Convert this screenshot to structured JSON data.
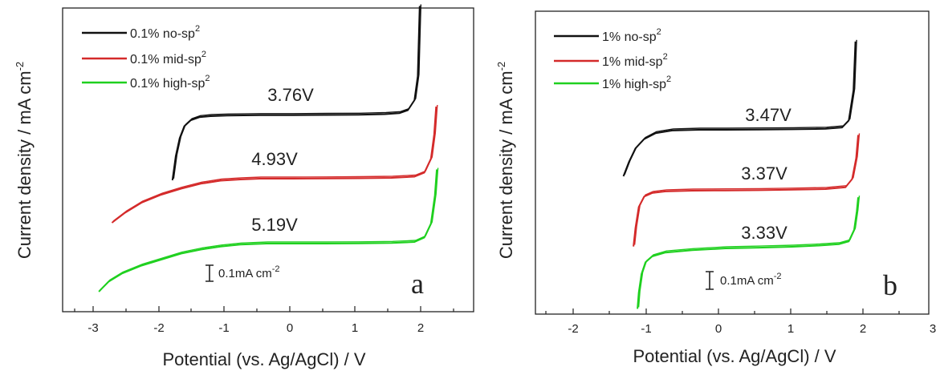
{
  "colors": {
    "black": "#111111",
    "red": "#d42a2a",
    "green": "#1fd01f"
  },
  "chart_data": [
    {
      "type": "line",
      "panel_label": "a",
      "xlabel": "Potential (vs. Ag/AgCl) / V",
      "ylabel": "Current density / mA cm",
      "ylabel_superscript": "-2",
      "xlim": [
        -3.5,
        2.75
      ],
      "xticks": [
        -3,
        -2,
        -1,
        0,
        1,
        2
      ],
      "xtick_labels": [
        "-3",
        "-2",
        "-1",
        "0",
        "1",
        "2"
      ],
      "legend": {
        "placement": "top-left"
      },
      "scale_bar": {
        "label": "0.1mA cm",
        "superscript": "-2"
      },
      "series": [
        {
          "name": "0.1% no-sp",
          "sup": "2",
          "color": "black",
          "window": "3.76V",
          "x": [
            -1.83,
            -1.78,
            -1.72,
            -1.65,
            -1.55,
            -1.42,
            -1.25,
            -1.0,
            -0.5,
            0.0,
            0.5,
            1.0,
            1.4,
            1.62,
            1.75,
            1.85,
            1.9,
            1.93
          ],
          "y": [
            -0.32,
            -0.2,
            -0.11,
            -0.05,
            -0.02,
            -0.005,
            0.0,
            0.003,
            0.005,
            0.005,
            0.006,
            0.007,
            0.01,
            0.015,
            0.03,
            0.08,
            0.2,
            0.55
          ]
        },
        {
          "name": "0.1% mid-sp",
          "sup": "2",
          "color": "red",
          "window": "4.93V",
          "x": [
            -2.75,
            -2.55,
            -2.3,
            -2.0,
            -1.7,
            -1.4,
            -1.1,
            -0.8,
            -0.5,
            0.0,
            0.5,
            1.0,
            1.5,
            1.85,
            2.0,
            2.1,
            2.15,
            2.18
          ],
          "y": [
            -0.22,
            -0.17,
            -0.12,
            -0.08,
            -0.05,
            -0.025,
            -0.01,
            -0.004,
            0.0,
            0.0,
            0.001,
            0.002,
            0.004,
            0.01,
            0.03,
            0.1,
            0.22,
            0.36
          ]
        },
        {
          "name": "0.1% high-sp",
          "sup": "2",
          "color": "green",
          "window": "5.19V",
          "x": [
            -2.95,
            -2.8,
            -2.6,
            -2.3,
            -2.0,
            -1.7,
            -1.4,
            -1.1,
            -0.8,
            -0.4,
            0.0,
            0.5,
            1.0,
            1.5,
            1.85,
            2.0,
            2.1,
            2.16,
            2.19
          ],
          "y": [
            -0.24,
            -0.19,
            -0.15,
            -0.11,
            -0.08,
            -0.05,
            -0.03,
            -0.015,
            -0.005,
            0.0,
            0.0,
            0.0,
            0.001,
            0.003,
            0.008,
            0.03,
            0.1,
            0.24,
            0.37
          ]
        }
      ]
    },
    {
      "type": "line",
      "panel_label": "b",
      "xlabel": "Potential (vs. Ag/AgCl) / V",
      "ylabel": "Current density / mA cm",
      "ylabel_superscript": "-2",
      "xlim": [
        -2.85,
        3.05
      ],
      "xticks": [
        -2,
        -1,
        0,
        1,
        2,
        3
      ],
      "xtick_labels": [
        "-2",
        "-1",
        "0",
        "1",
        "2",
        "3"
      ],
      "legend": {
        "placement": "top-left"
      },
      "scale_bar": {
        "label": "0.1mA cm",
        "superscript": "-2"
      },
      "series": [
        {
          "name": "1% no-sp",
          "sup": "2",
          "color": "black",
          "window": "3.47V",
          "x": [
            -1.53,
            -1.45,
            -1.35,
            -1.22,
            -1.05,
            -0.8,
            -0.4,
            0.0,
            0.5,
            1.0,
            1.5,
            1.75,
            1.85,
            1.92,
            1.95
          ],
          "y": [
            -0.2,
            -0.14,
            -0.08,
            -0.04,
            -0.015,
            -0.003,
            0.0,
            0.0,
            0.001,
            0.002,
            0.004,
            0.01,
            0.04,
            0.17,
            0.38
          ]
        },
        {
          "name": "1% mid-sp",
          "sup": "2",
          "color": "red",
          "window": "3.37V",
          "x": [
            -1.38,
            -1.35,
            -1.3,
            -1.22,
            -1.1,
            -0.9,
            -0.5,
            0.0,
            0.5,
            1.0,
            1.5,
            1.8,
            1.9,
            1.96,
            1.99
          ],
          "y": [
            -0.24,
            -0.16,
            -0.07,
            -0.025,
            -0.01,
            -0.003,
            0.0,
            0.001,
            0.002,
            0.004,
            0.007,
            0.015,
            0.05,
            0.14,
            0.24
          ]
        },
        {
          "name": "1% high-sp",
          "sup": "2",
          "color": "green",
          "window": "3.33V",
          "x": [
            -1.32,
            -1.3,
            -1.26,
            -1.2,
            -1.1,
            -0.9,
            -0.5,
            0.0,
            0.5,
            1.0,
            1.4,
            1.7,
            1.85,
            1.93,
            1.97,
            1.99
          ],
          "y": [
            -0.26,
            -0.19,
            -0.11,
            -0.06,
            -0.035,
            -0.018,
            -0.008,
            0.0,
            0.003,
            0.007,
            0.012,
            0.018,
            0.03,
            0.08,
            0.16,
            0.22
          ]
        }
      ]
    }
  ]
}
